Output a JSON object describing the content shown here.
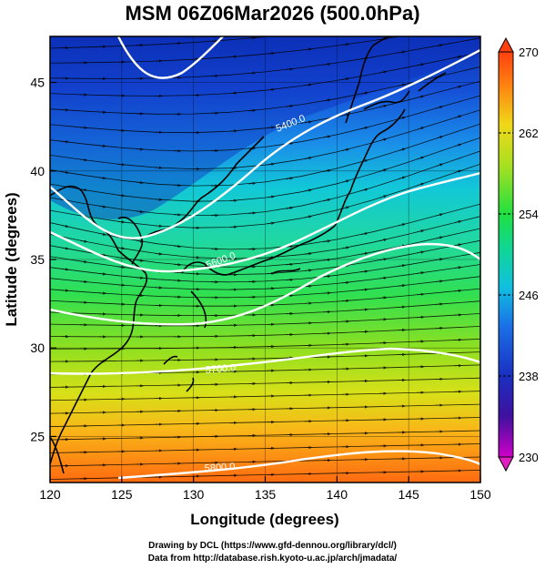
{
  "title": "MSM 06Z06Mar2026 (500.0hPa)",
  "xlabel": "Longitude (degrees)",
  "ylabel": "Latitude  (degrees)",
  "credits": {
    "line1": "Drawing by DCL (https://www.gfd-dennou.org/library/dcl/)",
    "line2": "Data from http://database.rish.kyoto-u.ac.jp/arch/jmadata/"
  },
  "chart_data": {
    "type": "heatmap",
    "xlim": [
      120,
      150
    ],
    "ylim": [
      22.4,
      47.6
    ],
    "x_ticks": [
      120,
      125,
      130,
      135,
      140,
      145,
      150
    ],
    "y_ticks": [
      25,
      30,
      35,
      40,
      45
    ],
    "colorbar": {
      "min": 230,
      "max": 270,
      "ticks": [
        230,
        238,
        246,
        254,
        262,
        270
      ],
      "colors": [
        "#cc00cc",
        "#1515a0",
        "#1a5ee0",
        "#10d0e0",
        "#20e060",
        "#c8e020",
        "#ff6010"
      ]
    },
    "contours": [
      {
        "label": "5400.0"
      },
      {
        "label": "5600.0"
      },
      {
        "label": "5700.0"
      },
      {
        "label": "5800.0"
      }
    ],
    "grid": true
  }
}
